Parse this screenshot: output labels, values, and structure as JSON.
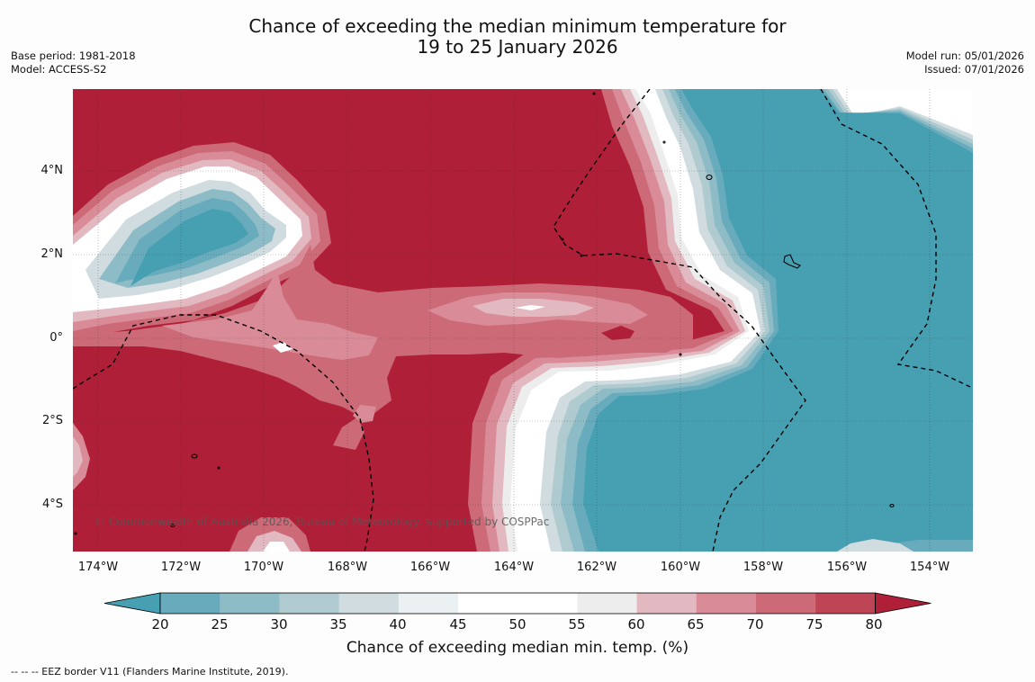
{
  "title_line1": "Chance of exceeding the median minimum temperature for",
  "title_line2": "19 to 25 January 2026",
  "base_period": "Base period: 1981-2018",
  "model": "Model: ACCESS-S2",
  "model_run": "Model run: 05/01/2026",
  "issued": "Issued: 07/01/2026",
  "copyright": "© Commonwealth of Australia 2026, Bureau of Meteorology, supported by COSPPac",
  "lat_labels": [
    "4°N",
    "2°N",
    "0°",
    "2°S",
    "4°S"
  ],
  "lon_labels": [
    "174°W",
    "172°W",
    "170°W",
    "168°W",
    "166°W",
    "164°W",
    "162°W",
    "160°W",
    "158°W",
    "156°W",
    "154°W"
  ],
  "colorbar": {
    "ticks": [
      "20",
      "25",
      "30",
      "35",
      "40",
      "45",
      "50",
      "55",
      "60",
      "65",
      "70",
      "75",
      "80"
    ],
    "colors": [
      "#46a0b2",
      "#68abbc",
      "#8ebcc6",
      "#b0cbd0",
      "#d0dcdf",
      "#ebf1f2",
      "#ffffff",
      "#ffffff",
      "#eeeded",
      "#e2b9c0",
      "#d98c98",
      "#cc6a78",
      "#be4555",
      "#b01f38"
    ],
    "label": "Chance of exceeding median min. temp. (%)"
  },
  "footer": "--  --  -- EEZ border V11 (Flanders Marine Institute, 2019)."
}
